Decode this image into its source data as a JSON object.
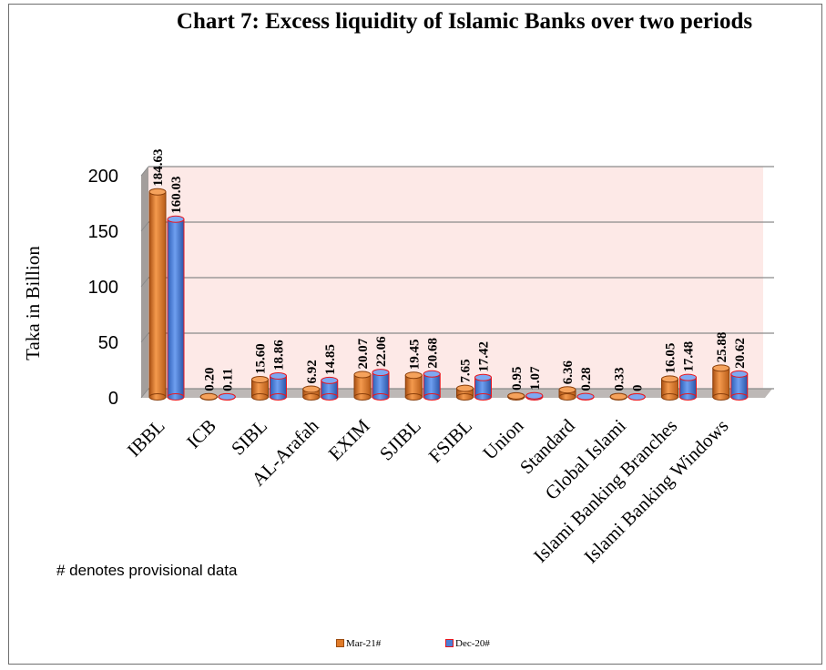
{
  "chart_data": {
    "type": "bar",
    "title": "Chart 7: Excess liquidity of Islamic Banks over two periods",
    "ylabel": "Taka in Billion",
    "xlabel": "",
    "ylim": [
      0,
      200
    ],
    "yticks": [
      0,
      50,
      100,
      150,
      200
    ],
    "grid": true,
    "legend_position": "bottom",
    "categories": [
      "IBBL",
      "ICB",
      "SIBL",
      "AL-Arafah",
      "EXIM",
      "SJIBL",
      "FSIBL",
      "Union",
      "Standard",
      "Global Islami",
      "Islami Banking Branches",
      "Islami Banking Windows"
    ],
    "series": [
      {
        "name": "Mar-21#",
        "color": "#e07b29",
        "values": [
          184.63,
          0.2,
          15.6,
          6.92,
          20.07,
          19.45,
          7.65,
          0.95,
          6.36,
          0.33,
          16.05,
          25.88
        ],
        "labels": [
          "184.63",
          "0.20",
          "15.60",
          "6.92",
          "20.07",
          "19.45",
          "7.65",
          "0.95",
          "6.36",
          "0.33",
          "16.05",
          "25.88"
        ]
      },
      {
        "name": "Dec-20#",
        "color": "#4a7fd6",
        "edge_color": "#e8171f",
        "values": [
          160.03,
          0.11,
          18.86,
          14.85,
          22.06,
          20.68,
          17.42,
          1.07,
          0.28,
          0,
          17.48,
          20.62
        ],
        "labels": [
          "160.03",
          "0.11",
          "18.86",
          "14.85",
          "22.06",
          "20.68",
          "17.42",
          "1.07",
          "0.28",
          "0",
          "17.48",
          "20.62"
        ]
      }
    ],
    "footnote": "# denotes provisional data"
  }
}
